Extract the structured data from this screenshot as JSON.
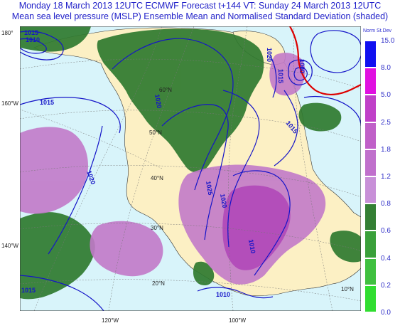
{
  "title": {
    "line1": "Monday 18 March 2013 12UTC ECMWF Forecast t+144  VT: Sunday 24 March 2013 12UTC",
    "line2": "Mean sea level pressure (MSLP) Ensemble Mean and Normalised Standard Deviation (shaded)"
  },
  "map": {
    "latitude_labels": [
      "60°N",
      "50°N",
      "40°N",
      "30°N",
      "20°N",
      "10°N"
    ],
    "longitude_labels": [
      "180°",
      "160°W",
      "140°W",
      "120°W",
      "100°W"
    ],
    "isobar_labels": [
      "1015",
      "1010",
      "1015",
      "1020",
      "1015",
      "1020",
      "1025",
      "1020",
      "1010",
      "1010",
      "1015",
      "1020",
      "1000",
      "1015"
    ],
    "colors": {
      "ocean": "#d8f4fa",
      "land": "#fcf0c4",
      "isobar": "#1414c8",
      "isobar_highlight": "#dd0000",
      "coast": "#333333"
    }
  },
  "legend": {
    "title": "Norm St.Dev",
    "levels": [
      "15.0",
      "8.0",
      "5.0",
      "2.5",
      "1.8",
      "1.2",
      "0.8",
      "0.6",
      "0.4",
      "0.2",
      "0.0"
    ],
    "colors": [
      "#1010f0",
      "#e010e0",
      "#c040c8",
      "#c060c8",
      "#c070cc",
      "#c890d8",
      "#347f34",
      "#3aa03a",
      "#3fc03f",
      "#30dd30",
      "#20f020"
    ]
  }
}
